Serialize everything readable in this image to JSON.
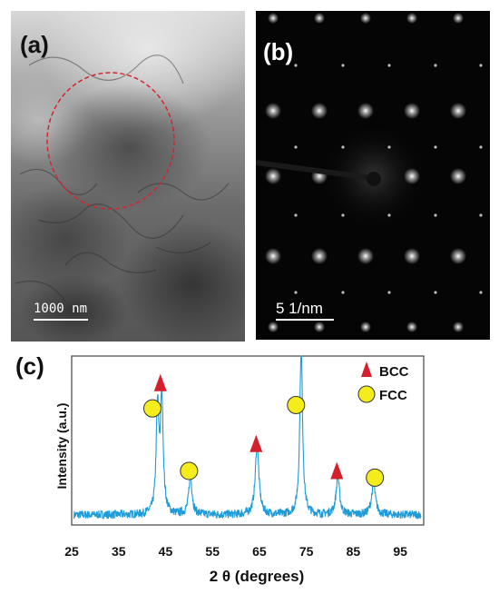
{
  "panel_a": {
    "label": "(a)",
    "scale_bar": "1000 nm"
  },
  "panel_b": {
    "label": "(b)",
    "scale_bar": "5 1/nm"
  },
  "panel_c": {
    "label": "(c)"
  },
  "chart_data": {
    "type": "line",
    "title": "",
    "xlabel": "2 θ (degrees)",
    "ylabel": "Intensity (a.u.)",
    "xlim": [
      25,
      100
    ],
    "ylim": [
      0,
      100
    ],
    "xticks": [
      25,
      35,
      45,
      55,
      65,
      75,
      85,
      95
    ],
    "grid": false,
    "line_color": "#1f9bd7",
    "peaks": [
      {
        "x": 43.3,
        "height": 62,
        "width": 0.35,
        "phase": "FCC"
      },
      {
        "x": 44.2,
        "height": 68,
        "width": 0.35,
        "phase": "BCC"
      },
      {
        "x": 50.3,
        "height": 24,
        "width": 0.4,
        "phase": "FCC"
      },
      {
        "x": 64.5,
        "height": 42,
        "width": 0.45,
        "phase": "BCC"
      },
      {
        "x": 73.9,
        "height": 100,
        "width": 0.35,
        "phase": "FCC"
      },
      {
        "x": 81.7,
        "height": 22,
        "width": 0.45,
        "phase": "BCC"
      },
      {
        "x": 89.3,
        "height": 18,
        "width": 0.5,
        "phase": "FCC"
      }
    ],
    "baseline": 6,
    "markers": [
      {
        "x": 42.2,
        "y": 69,
        "shape": "circle"
      },
      {
        "x": 43.9,
        "y": 84,
        "shape": "triangle"
      },
      {
        "x": 50.0,
        "y": 32,
        "shape": "circle"
      },
      {
        "x": 64.3,
        "y": 48,
        "shape": "triangle"
      },
      {
        "x": 72.8,
        "y": 71,
        "shape": "circle"
      },
      {
        "x": 81.5,
        "y": 32,
        "shape": "triangle"
      },
      {
        "x": 89.6,
        "y": 28,
        "shape": "circle"
      }
    ],
    "legend": [
      {
        "label": "BCC",
        "shape": "triangle",
        "color": "#d4202a"
      },
      {
        "label": "FCC",
        "shape": "circle",
        "color": "#f5ec1b"
      }
    ],
    "legend_placement": "top-right"
  }
}
